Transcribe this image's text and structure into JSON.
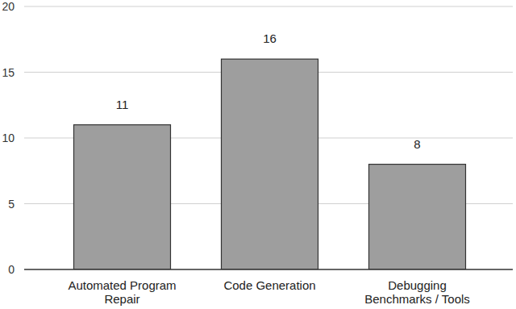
{
  "chart_data": {
    "type": "bar",
    "categories": [
      "Automated Program Repair",
      "Code Generation",
      "Debugging Benchmarks / Tools"
    ],
    "values": [
      11,
      16,
      8
    ],
    "color": "#9e9e9e",
    "ylim": [
      0,
      20
    ],
    "yticks": [
      0,
      5,
      10,
      15,
      20
    ],
    "grid": true,
    "data_labels": true
  }
}
